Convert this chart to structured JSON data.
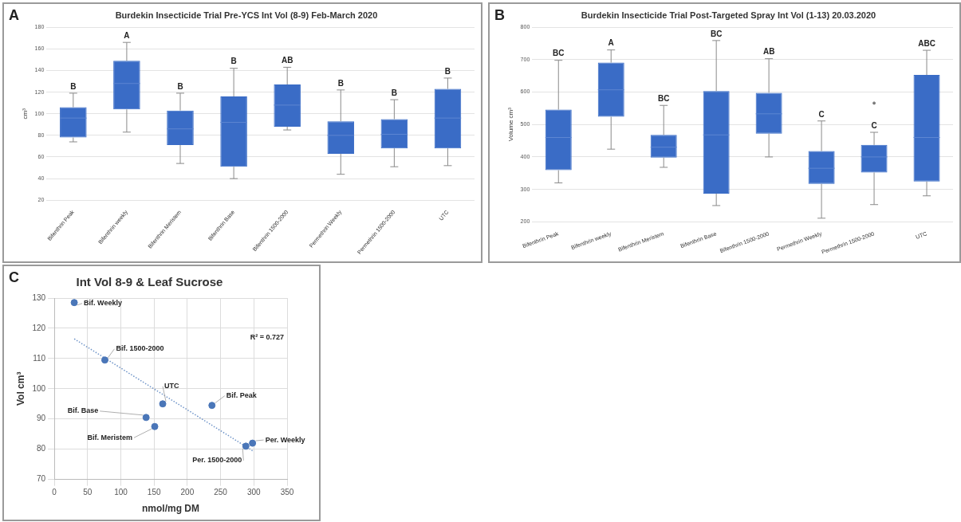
{
  "chart_data": [
    {
      "type": "box",
      "title": "Burdekin Insecticide Trial Pre-YCS Int Vol (8-9) Feb-March 2020",
      "ylabel": "cm³",
      "categories": [
        "Bifenthrin Peak",
        "Bifenthrin weekly",
        "Bifenthrin Meristem",
        "Bifenthrin Base",
        "Bifenthrin 1500-2000",
        "Permethrin Weekly",
        "Permethrin 1500-2000",
        "UTC"
      ],
      "color": "#3a6cc6",
      "boxes": [
        {
          "low": 74,
          "q1": 78,
          "median": 96,
          "q3": 106,
          "high": 119
        },
        {
          "low": 83,
          "q1": 104,
          "median": 128,
          "q3": 149,
          "high": 166
        },
        {
          "low": 54,
          "q1": 71,
          "median": 86,
          "q3": 103,
          "high": 119
        },
        {
          "low": 40,
          "q1": 51,
          "median": 92,
          "q3": 116,
          "high": 142
        },
        {
          "low": 85,
          "q1": 88,
          "median": 108,
          "q3": 127,
          "high": 143
        },
        {
          "low": 44,
          "q1": 63,
          "median": 80,
          "q3": 93,
          "high": 122
        },
        {
          "low": 51,
          "q1": 68,
          "median": 81,
          "q3": 95,
          "high": 113
        },
        {
          "low": 52,
          "q1": 68,
          "median": 96,
          "q3": 123,
          "high": 133
        }
      ],
      "ylim": [
        20,
        180
      ],
      "yticks": [
        20,
        40,
        60,
        80,
        100,
        120,
        140,
        160,
        180
      ],
      "grid": "y",
      "annotations": [
        "A",
        {
          "text": "B",
          "x": "Bifenthrin Peak",
          "y": 119
        },
        {
          "text": "A",
          "x": "Bifenthrin weekly",
          "y": 166
        },
        {
          "text": "B",
          "x": "Bifenthrin Meristem",
          "y": 119
        },
        {
          "text": "B",
          "x": "Bifenthrin Base",
          "y": 142
        },
        {
          "text": "AB",
          "x": "Bifenthrin 1500-2000",
          "y": 143
        },
        {
          "text": "B",
          "x": "Permethrin Weekly",
          "y": 122
        },
        {
          "text": "B",
          "x": "Permethrin 1500-2000",
          "y": 113
        },
        {
          "text": "B",
          "x": "UTC",
          "y": 133
        }
      ]
    },
    {
      "type": "box",
      "title": "Burdekin Insecticide Trial Post-Targeted Spray Int Vol (1-13) 20.03.2020",
      "ylabel": "Volume cm³",
      "categories": [
        "Bifenthrin Peak",
        "Bifenthrin weekly",
        "Bifenthrin Meristem",
        "Bifenthrin Base",
        "Bifenthrin 1500-2000",
        "Permethrin Weekly",
        "Permethrin 1500-2000",
        "UTC"
      ],
      "color": "#3a6cc6",
      "boxes": [
        {
          "low": 320,
          "q1": 359,
          "median": 460,
          "q3": 546,
          "high": 698
        },
        {
          "low": 424,
          "q1": 524,
          "median": 607,
          "q3": 691,
          "high": 730
        },
        {
          "low": 368,
          "q1": 398,
          "median": 430,
          "q3": 468,
          "high": 559
        },
        {
          "low": 250,
          "q1": 287,
          "median": 468,
          "q3": 603,
          "high": 759
        },
        {
          "low": 400,
          "q1": 472,
          "median": 533,
          "q3": 598,
          "high": 703
        },
        {
          "low": 211,
          "q1": 317,
          "median": 365,
          "q3": 418,
          "high": 511
        },
        {
          "low": 253,
          "q1": 352,
          "median": 400,
          "q3": 437,
          "high": 476,
          "outliers": [
            566
          ]
        },
        {
          "low": 280,
          "q1": 324,
          "median": 460,
          "q3": 653,
          "high": 729
        }
      ],
      "ylim": [
        200,
        800
      ],
      "yticks": [
        200,
        300,
        400,
        500,
        600,
        700,
        800
      ],
      "grid": "y",
      "annotations": [
        "B",
        {
          "text": "BC",
          "x": "Bifenthrin Peak",
          "y": 698
        },
        {
          "text": "A",
          "x": "Bifenthrin weekly",
          "y": 730
        },
        {
          "text": "BC",
          "x": "Bifenthrin Meristem",
          "y": 559
        },
        {
          "text": "BC",
          "x": "Bifenthrin Base",
          "y": 759
        },
        {
          "text": "AB",
          "x": "Bifenthrin 1500-2000",
          "y": 703
        },
        {
          "text": "C",
          "x": "Permethrin Weekly",
          "y": 511
        },
        {
          "text": "C",
          "x": "Permethrin 1500-2000",
          "y": 476
        },
        {
          "text": "ABC",
          "x": "UTC",
          "y": 729
        }
      ]
    },
    {
      "type": "scatter",
      "title": "Int Vol 8-9 & Leaf Sucrose",
      "xlabel": "nmol/mg DM",
      "ylabel": "Vol cm³",
      "xlim": [
        0,
        350
      ],
      "xticks": [
        0,
        50,
        100,
        150,
        200,
        250,
        300,
        350
      ],
      "ylim": [
        70,
        130
      ],
      "yticks": [
        70,
        80,
        90,
        100,
        110,
        120,
        130
      ],
      "grid": true,
      "series": [
        {
          "color": "#4a76b8",
          "marker": "circle",
          "x": [
            30,
            76,
            138,
            151,
            163,
            237,
            288,
            298
          ],
          "values": [
            128.5,
            109.5,
            90.5,
            87.5,
            95,
            94.5,
            81,
            82
          ]
        },
        {
          "type": "line",
          "color": "#6f94c8",
          "marker": "none",
          "line_style": "dotted",
          "x": [
            30,
            298
          ],
          "values": [
            116.5,
            79.5
          ]
        }
      ],
      "annotations": [
        "C",
        {
          "text": "Bif. Weekly",
          "x": 30,
          "y": 128.5
        },
        {
          "text": "Bif. 1500-2000",
          "x": 76,
          "y": 109.5
        },
        {
          "text": "Bif. Base",
          "x": 138,
          "y": 90.5
        },
        {
          "text": "Bif. Meristem",
          "x": 151,
          "y": 87.5
        },
        {
          "text": "UTC",
          "x": 163,
          "y": 95
        },
        {
          "text": "Bif. Peak",
          "x": 237,
          "y": 94.5
        },
        {
          "text": "Per. 1500-2000",
          "x": 288,
          "y": 81
        },
        {
          "text": "Per. Weekly",
          "x": 298,
          "y": 82
        },
        "R² = 0.727"
      ]
    }
  ]
}
